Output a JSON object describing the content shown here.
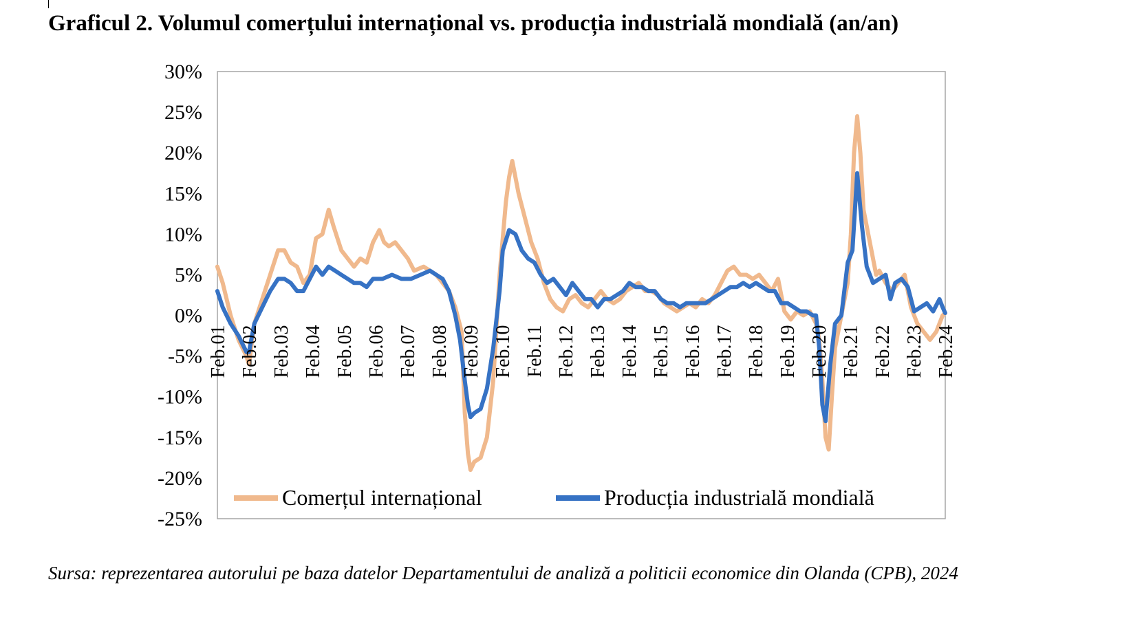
{
  "title": "Graficul 2. Volumul comerțului internațional vs. producția industrială mondială (an/an)",
  "source": "Sursa: reprezentarea autorului pe baza datelor Departamentului de analiză a politicii economice din Olanda (CPB), 2024",
  "chart_data": {
    "type": "line",
    "ylim": [
      -25,
      30
    ],
    "y_ticks": [
      30,
      25,
      20,
      15,
      10,
      5,
      0,
      -5,
      -10,
      -15,
      -20,
      -25
    ],
    "y_tick_labels": [
      "30%",
      "25%",
      "20%",
      "15%",
      "10%",
      "5%",
      "0%",
      "-5%",
      "-10%",
      "-15%",
      "-20%",
      "-25%"
    ],
    "x_range": [
      2001.083,
      2024.083
    ],
    "x_tick_labels": [
      "Feb.01",
      "Feb.02",
      "Feb.03",
      "Feb.04",
      "Feb.05",
      "Feb.06",
      "Feb.07",
      "Feb.08",
      "Feb.09",
      "Feb.10",
      "Feb.11",
      "Feb.12",
      "Feb.13",
      "Feb.14",
      "Feb.15",
      "Feb.16",
      "Feb.17",
      "Feb.18",
      "Feb.19",
      "Feb.20",
      "Feb.21",
      "Feb.22",
      "Feb.23",
      "Feb.24"
    ],
    "grid": false,
    "legend_position": "bottom",
    "series": [
      {
        "name": "Comerțul internațional",
        "color": "#f0b98d",
        "points": [
          [
            2001.08,
            6
          ],
          [
            2001.25,
            4
          ],
          [
            2001.5,
            0
          ],
          [
            2001.75,
            -3
          ],
          [
            2002.0,
            -5
          ],
          [
            2002.08,
            -6
          ],
          [
            2002.25,
            -1
          ],
          [
            2002.5,
            2
          ],
          [
            2002.75,
            5
          ],
          [
            2003.0,
            8
          ],
          [
            2003.2,
            8
          ],
          [
            2003.4,
            6.5
          ],
          [
            2003.6,
            6
          ],
          [
            2003.8,
            4
          ],
          [
            2004.0,
            5
          ],
          [
            2004.2,
            9.5
          ],
          [
            2004.4,
            10
          ],
          [
            2004.6,
            13
          ],
          [
            2004.75,
            11
          ],
          [
            2005.0,
            8
          ],
          [
            2005.2,
            7
          ],
          [
            2005.4,
            6
          ],
          [
            2005.6,
            7
          ],
          [
            2005.8,
            6.5
          ],
          [
            2006.0,
            9
          ],
          [
            2006.2,
            10.5
          ],
          [
            2006.35,
            9
          ],
          [
            2006.5,
            8.5
          ],
          [
            2006.7,
            9
          ],
          [
            2006.9,
            8
          ],
          [
            2007.1,
            7
          ],
          [
            2007.3,
            5.5
          ],
          [
            2007.6,
            6
          ],
          [
            2007.8,
            5.5
          ],
          [
            2008.0,
            5
          ],
          [
            2008.2,
            4
          ],
          [
            2008.4,
            3
          ],
          [
            2008.6,
            1
          ],
          [
            2008.8,
            -2
          ],
          [
            2008.9,
            -12
          ],
          [
            2009.0,
            -17
          ],
          [
            2009.08,
            -19
          ],
          [
            2009.2,
            -18
          ],
          [
            2009.4,
            -17.5
          ],
          [
            2009.6,
            -15
          ],
          [
            2009.8,
            -8
          ],
          [
            2010.0,
            5
          ],
          [
            2010.2,
            14
          ],
          [
            2010.3,
            17
          ],
          [
            2010.4,
            19
          ],
          [
            2010.5,
            17
          ],
          [
            2010.6,
            15
          ],
          [
            2010.8,
            12
          ],
          [
            2011.0,
            9
          ],
          [
            2011.2,
            7
          ],
          [
            2011.4,
            4
          ],
          [
            2011.6,
            2
          ],
          [
            2011.8,
            1
          ],
          [
            2012.0,
            0.5
          ],
          [
            2012.2,
            2
          ],
          [
            2012.4,
            2.5
          ],
          [
            2012.6,
            1.5
          ],
          [
            2012.8,
            1
          ],
          [
            2013.0,
            2
          ],
          [
            2013.2,
            3
          ],
          [
            2013.4,
            2
          ],
          [
            2013.6,
            1.5
          ],
          [
            2013.8,
            2
          ],
          [
            2014.0,
            3
          ],
          [
            2014.2,
            3.5
          ],
          [
            2014.4,
            4
          ],
          [
            2014.6,
            3
          ],
          [
            2014.8,
            3
          ],
          [
            2015.0,
            2.5
          ],
          [
            2015.2,
            1.5
          ],
          [
            2015.4,
            1
          ],
          [
            2015.6,
            0.5
          ],
          [
            2015.8,
            1
          ],
          [
            2016.0,
            1.5
          ],
          [
            2016.2,
            1
          ],
          [
            2016.4,
            2
          ],
          [
            2016.6,
            1.5
          ],
          [
            2016.8,
            2.5
          ],
          [
            2017.0,
            4
          ],
          [
            2017.2,
            5.5
          ],
          [
            2017.4,
            6
          ],
          [
            2017.6,
            5
          ],
          [
            2017.8,
            5
          ],
          [
            2018.0,
            4.5
          ],
          [
            2018.2,
            5
          ],
          [
            2018.4,
            4
          ],
          [
            2018.6,
            3
          ],
          [
            2018.8,
            4.5
          ],
          [
            2019.0,
            0.5
          ],
          [
            2019.2,
            -0.5
          ],
          [
            2019.4,
            0.5
          ],
          [
            2019.6,
            0
          ],
          [
            2019.8,
            0.5
          ],
          [
            2020.0,
            -1
          ],
          [
            2020.1,
            -3
          ],
          [
            2020.2,
            -8
          ],
          [
            2020.3,
            -15
          ],
          [
            2020.4,
            -16.5
          ],
          [
            2020.5,
            -10
          ],
          [
            2020.6,
            -4
          ],
          [
            2020.8,
            0
          ],
          [
            2021.0,
            4
          ],
          [
            2021.1,
            10
          ],
          [
            2021.2,
            20
          ],
          [
            2021.3,
            24.5
          ],
          [
            2021.4,
            20
          ],
          [
            2021.5,
            13
          ],
          [
            2021.7,
            9
          ],
          [
            2021.9,
            5
          ],
          [
            2022.0,
            5.5
          ],
          [
            2022.2,
            4
          ],
          [
            2022.4,
            3
          ],
          [
            2022.6,
            4
          ],
          [
            2022.8,
            5
          ],
          [
            2023.0,
            1
          ],
          [
            2023.2,
            -1
          ],
          [
            2023.4,
            -2
          ],
          [
            2023.6,
            -3
          ],
          [
            2023.8,
            -2
          ],
          [
            2024.0,
            0
          ],
          [
            2024.08,
            0.3
          ]
        ]
      },
      {
        "name": "Producția industrială mondială",
        "color": "#3672c4",
        "points": [
          [
            2001.08,
            3
          ],
          [
            2001.25,
            1
          ],
          [
            2001.5,
            -1
          ],
          [
            2001.75,
            -2.5
          ],
          [
            2002.0,
            -4.5
          ],
          [
            2002.08,
            -4.5
          ],
          [
            2002.25,
            -1
          ],
          [
            2002.5,
            1
          ],
          [
            2002.75,
            3
          ],
          [
            2003.0,
            4.5
          ],
          [
            2003.2,
            4.5
          ],
          [
            2003.4,
            4
          ],
          [
            2003.6,
            3
          ],
          [
            2003.8,
            3
          ],
          [
            2004.0,
            4.5
          ],
          [
            2004.2,
            6
          ],
          [
            2004.4,
            5
          ],
          [
            2004.6,
            6
          ],
          [
            2004.8,
            5.5
          ],
          [
            2005.0,
            5
          ],
          [
            2005.2,
            4.5
          ],
          [
            2005.4,
            4
          ],
          [
            2005.6,
            4
          ],
          [
            2005.8,
            3.5
          ],
          [
            2006.0,
            4.5
          ],
          [
            2006.3,
            4.5
          ],
          [
            2006.6,
            5
          ],
          [
            2006.9,
            4.5
          ],
          [
            2007.2,
            4.5
          ],
          [
            2007.5,
            5
          ],
          [
            2007.8,
            5.5
          ],
          [
            2008.0,
            5
          ],
          [
            2008.2,
            4.5
          ],
          [
            2008.4,
            3
          ],
          [
            2008.6,
            0
          ],
          [
            2008.75,
            -3
          ],
          [
            2008.9,
            -8
          ],
          [
            2009.0,
            -11
          ],
          [
            2009.08,
            -12.5
          ],
          [
            2009.2,
            -12
          ],
          [
            2009.4,
            -11.5
          ],
          [
            2009.6,
            -9
          ],
          [
            2009.8,
            -4
          ],
          [
            2010.0,
            3
          ],
          [
            2010.1,
            8
          ],
          [
            2010.3,
            10.5
          ],
          [
            2010.5,
            10
          ],
          [
            2010.7,
            8
          ],
          [
            2010.9,
            7
          ],
          [
            2011.1,
            6.5
          ],
          [
            2011.3,
            5
          ],
          [
            2011.5,
            4
          ],
          [
            2011.7,
            4.5
          ],
          [
            2011.9,
            3.5
          ],
          [
            2012.1,
            2.5
          ],
          [
            2012.3,
            4
          ],
          [
            2012.5,
            3
          ],
          [
            2012.7,
            2
          ],
          [
            2012.9,
            2
          ],
          [
            2013.1,
            1
          ],
          [
            2013.3,
            2
          ],
          [
            2013.5,
            2
          ],
          [
            2013.7,
            2.5
          ],
          [
            2013.9,
            3
          ],
          [
            2014.1,
            4
          ],
          [
            2014.3,
            3.5
          ],
          [
            2014.5,
            3.5
          ],
          [
            2014.7,
            3
          ],
          [
            2014.9,
            3
          ],
          [
            2015.1,
            2
          ],
          [
            2015.3,
            1.5
          ],
          [
            2015.5,
            1.5
          ],
          [
            2015.7,
            1
          ],
          [
            2015.9,
            1.5
          ],
          [
            2016.1,
            1.5
          ],
          [
            2016.3,
            1.5
          ],
          [
            2016.5,
            1.5
          ],
          [
            2016.7,
            2
          ],
          [
            2016.9,
            2.5
          ],
          [
            2017.1,
            3
          ],
          [
            2017.3,
            3.5
          ],
          [
            2017.5,
            3.5
          ],
          [
            2017.7,
            4
          ],
          [
            2017.9,
            3.5
          ],
          [
            2018.1,
            4
          ],
          [
            2018.3,
            3.5
          ],
          [
            2018.5,
            3
          ],
          [
            2018.7,
            3
          ],
          [
            2018.9,
            1.5
          ],
          [
            2019.1,
            1.5
          ],
          [
            2019.3,
            1
          ],
          [
            2019.5,
            0.5
          ],
          [
            2019.7,
            0.5
          ],
          [
            2019.9,
            0
          ],
          [
            2020.0,
            0
          ],
          [
            2020.1,
            -4
          ],
          [
            2020.2,
            -11
          ],
          [
            2020.3,
            -13
          ],
          [
            2020.45,
            -6
          ],
          [
            2020.6,
            -1
          ],
          [
            2020.8,
            0
          ],
          [
            2021.0,
            6.5
          ],
          [
            2021.15,
            8
          ],
          [
            2021.3,
            17.5
          ],
          [
            2021.45,
            11
          ],
          [
            2021.6,
            6
          ],
          [
            2021.8,
            4
          ],
          [
            2022.0,
            4.5
          ],
          [
            2022.2,
            5
          ],
          [
            2022.35,
            2
          ],
          [
            2022.5,
            4
          ],
          [
            2022.7,
            4.5
          ],
          [
            2022.9,
            3.5
          ],
          [
            2023.1,
            0.5
          ],
          [
            2023.3,
            1
          ],
          [
            2023.5,
            1.5
          ],
          [
            2023.7,
            0.5
          ],
          [
            2023.9,
            2
          ],
          [
            2024.0,
            1
          ],
          [
            2024.08,
            0.3
          ]
        ]
      }
    ]
  }
}
